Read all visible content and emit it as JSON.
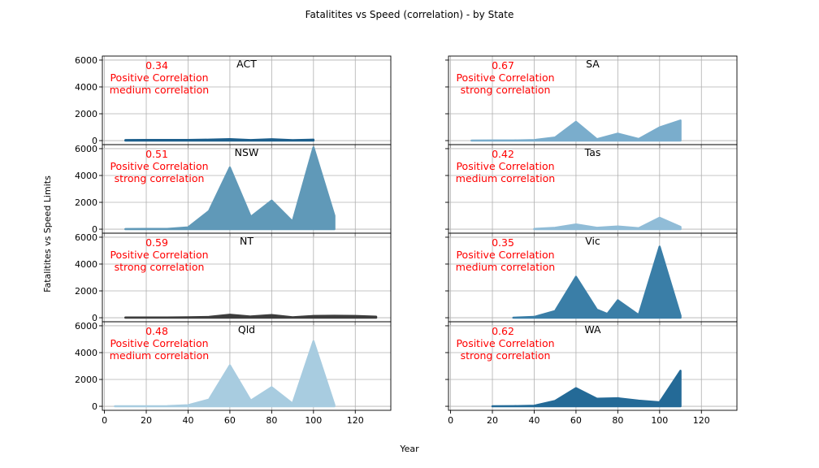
{
  "chart_data": {
    "type": "area",
    "title": "Fatalitites vs Speed (correlation) - by State",
    "xlabel": "Year",
    "ylabel": "Fatalitites vs Speed Limits",
    "xlim": [
      -1,
      137
    ],
    "ylim": [
      -300,
      6300
    ],
    "xticks": [
      0,
      20,
      40,
      60,
      80,
      100,
      120
    ],
    "yticks": [
      0,
      2000,
      4000,
      6000
    ],
    "grid": true,
    "annotation_color": "#ff0000",
    "panels": [
      {
        "state": "ACT",
        "col": 0,
        "row": 0,
        "color": "#1d5f8c",
        "corr_value": "0.34",
        "corr_line1": "Positive Correlation",
        "corr_line2": "medium correlation",
        "x": [
          10,
          20,
          30,
          40,
          50,
          60,
          70,
          80,
          90,
          100
        ],
        "y": [
          40,
          45,
          45,
          45,
          70,
          110,
          40,
          100,
          30,
          70
        ]
      },
      {
        "state": "SA",
        "col": 1,
        "row": 0,
        "color": "#7aadcc",
        "corr_value": "0.67",
        "corr_line1": "Positive Correlation",
        "corr_line2": "strong correlation",
        "x": [
          10,
          20,
          30,
          40,
          50,
          60,
          70,
          80,
          90,
          100,
          110
        ],
        "y": [
          5,
          10,
          10,
          40,
          230,
          1400,
          100,
          520,
          120,
          980,
          1500
        ]
      },
      {
        "state": "NSW",
        "col": 0,
        "row": 1,
        "color": "#6099b8",
        "corr_value": "0.51",
        "corr_line1": "Positive Correlation",
        "corr_line2": "strong correlation",
        "x": [
          10,
          20,
          30,
          40,
          50,
          60,
          70,
          80,
          90,
          100,
          110
        ],
        "y": [
          10,
          20,
          20,
          130,
          1350,
          4600,
          920,
          2130,
          570,
          6100,
          1000
        ]
      },
      {
        "state": "Tas",
        "col": 1,
        "row": 1,
        "color": "#90bcd7",
        "corr_value": "0.42",
        "corr_line1": "Positive Correlation",
        "corr_line2": "medium correlation",
        "x": [
          40,
          50,
          60,
          70,
          80,
          90,
          100,
          110
        ],
        "y": [
          20,
          100,
          350,
          100,
          200,
          70,
          850,
          170
        ]
      },
      {
        "state": "NT",
        "col": 0,
        "row": 2,
        "color": "#3d3d3d",
        "corr_value": "0.59",
        "corr_line1": "Positive Correlation",
        "corr_line2": "strong correlation",
        "x": [
          10,
          20,
          30,
          40,
          50,
          60,
          70,
          80,
          90,
          100,
          110,
          120,
          130
        ],
        "y": [
          15,
          15,
          20,
          30,
          60,
          220,
          90,
          200,
          30,
          130,
          150,
          130,
          80
        ]
      },
      {
        "state": "Vic",
        "col": 1,
        "row": 2,
        "color": "#3a7ea7",
        "corr_value": "0.35",
        "corr_line1": "Positive Correlation",
        "corr_line2": "medium correlation",
        "x": [
          30,
          40,
          50,
          60,
          70,
          75,
          80,
          90,
          100,
          110
        ],
        "y": [
          0,
          60,
          500,
          3050,
          600,
          280,
          1300,
          200,
          5300,
          150
        ]
      },
      {
        "state": "Qld",
        "col": 0,
        "row": 3,
        "color": "#a8cce0",
        "corr_value": "0.48",
        "corr_line1": "Positive Correlation",
        "corr_line2": "medium correlation",
        "x": [
          5,
          10,
          20,
          30,
          40,
          50,
          60,
          70,
          80,
          90,
          100,
          110
        ],
        "y": [
          0,
          0,
          0,
          10,
          80,
          500,
          3050,
          420,
          1420,
          200,
          4850,
          100
        ]
      },
      {
        "state": "WA",
        "col": 1,
        "row": 3,
        "color": "#246a97",
        "corr_value": "0.62",
        "corr_line1": "Positive Correlation",
        "corr_line2": "strong correlation",
        "x": [
          20,
          30,
          40,
          50,
          60,
          70,
          80,
          90,
          100,
          110
        ],
        "y": [
          0,
          10,
          40,
          400,
          1350,
          560,
          600,
          420,
          300,
          2650
        ]
      }
    ]
  }
}
